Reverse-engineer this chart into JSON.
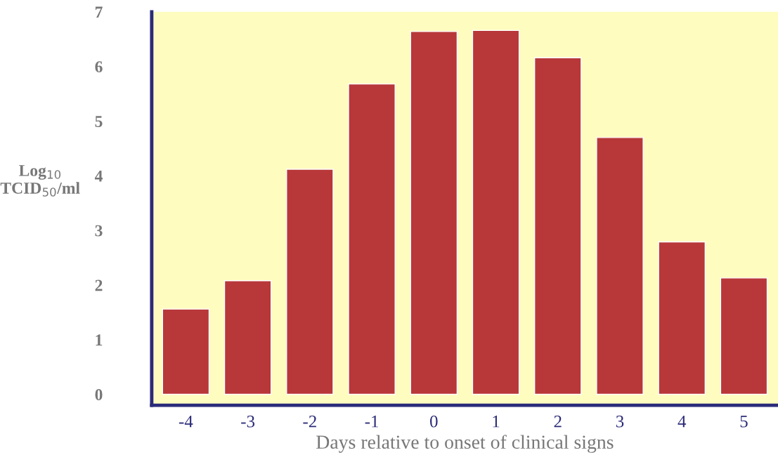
{
  "chart_data": {
    "type": "bar",
    "xlabel": "Days relative to onset of clinical signs",
    "ylabel": "Log$_{10}$\nTCID$_{50}$/ml",
    "categories": [
      "-4",
      "-3",
      "-2",
      "-1",
      "0",
      "1",
      "2",
      "3",
      "4",
      "5"
    ],
    "values": [
      1.56,
      2.08,
      4.12,
      5.68,
      6.64,
      6.66,
      6.16,
      4.7,
      2.79,
      2.13
    ],
    "color": "#b83739",
    "ylim": [
      -0.2,
      7
    ],
    "yticks": [
      0,
      1,
      2,
      3,
      4,
      5,
      6,
      7
    ],
    "grid": false,
    "legend": false
  }
}
